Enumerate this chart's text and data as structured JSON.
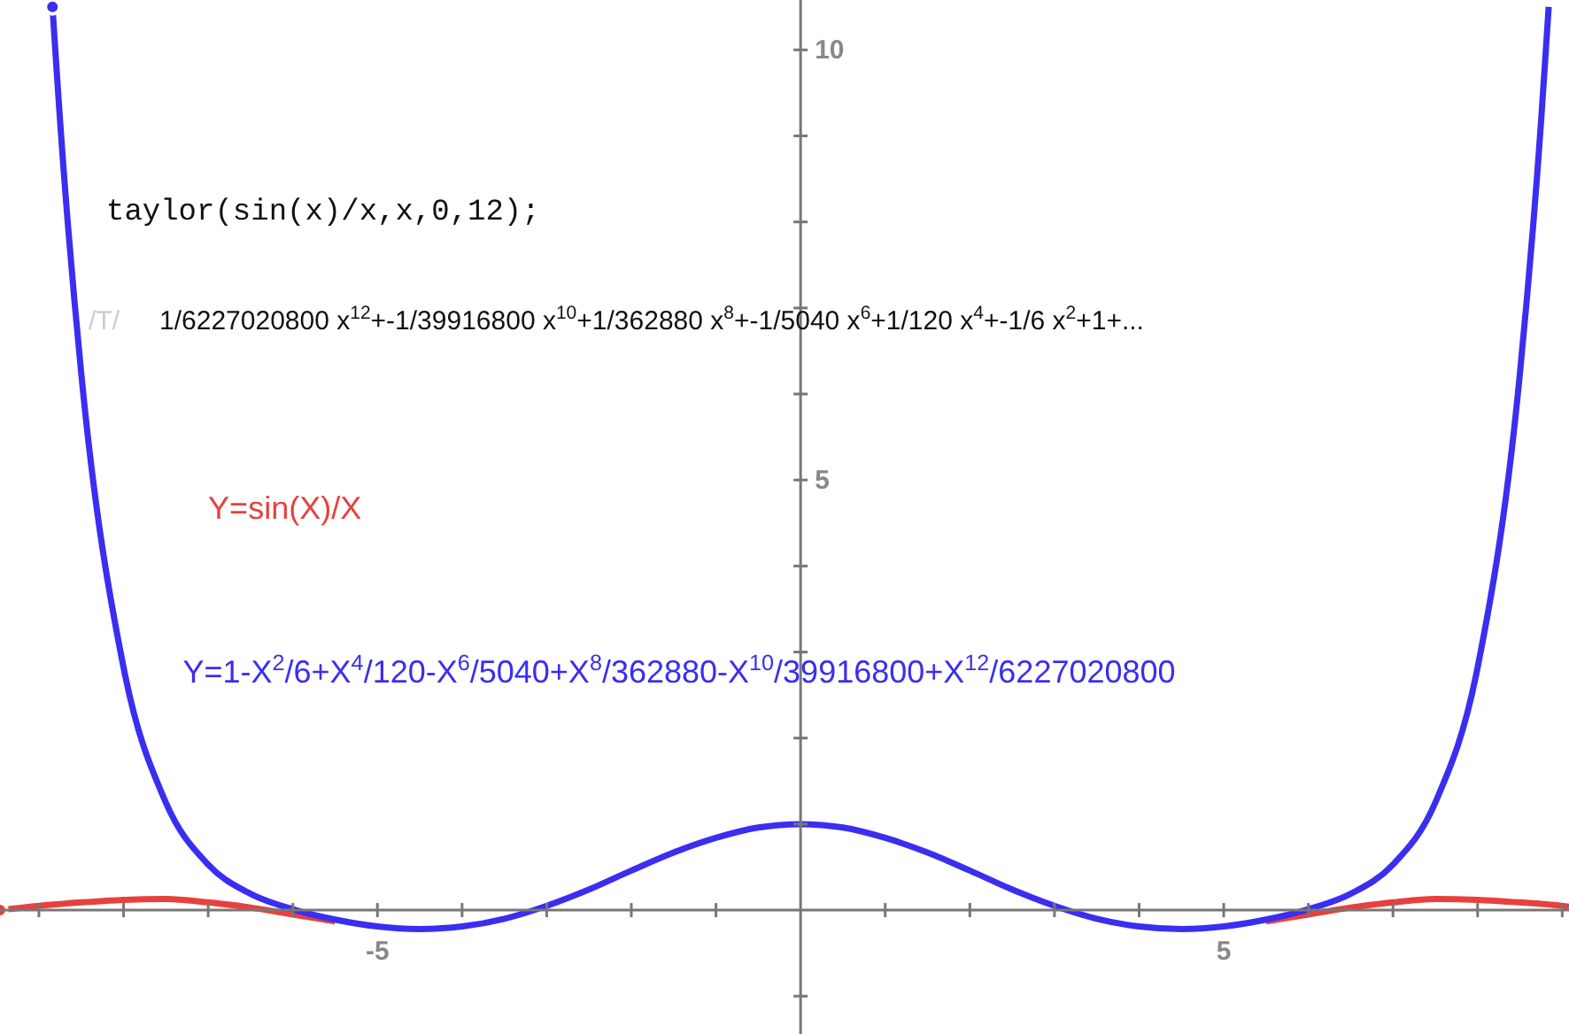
{
  "chart_data": {
    "type": "line",
    "title": "taylor(sin(x)/x,x,0,12);",
    "subtitle": "1/6227020800 x$^{12}$+-1/39916800 x$^{10}$+1/362880 x$^{8}$+-1/5040 x$^{6}$+1/120 x$^{4}$+-1/6 x$^{2}$+1+...",
    "annotations": [
      "/T/"
    ],
    "xlim": [
      -9.46,
      9.08
    ],
    "ylim": [
      -1.44,
      10.58
    ],
    "xticks": [
      {
        "value": -9,
        "label": null
      },
      {
        "value": -8,
        "label": null
      },
      {
        "value": -7,
        "label": null
      },
      {
        "value": -6,
        "label": null
      },
      -5,
      {
        "value": -4,
        "label": null
      },
      {
        "value": -3,
        "label": null
      },
      {
        "value": -2,
        "label": null
      },
      {
        "value": -1,
        "label": null
      },
      {
        "value": 1,
        "label": null
      },
      {
        "value": 2,
        "label": null
      },
      {
        "value": 3,
        "label": null
      },
      {
        "value": 4,
        "label": null
      },
      5,
      {
        "value": 6,
        "label": null
      },
      {
        "value": 7,
        "label": null
      },
      {
        "value": 8,
        "label": null
      },
      {
        "value": 9,
        "label": null
      }
    ],
    "yticks": [
      {
        "value": -1,
        "label": null
      },
      {
        "value": 1,
        "label": null
      },
      {
        "value": 2,
        "label": null
      },
      {
        "value": 3,
        "label": null
      },
      {
        "value": 4,
        "label": null
      },
      5,
      {
        "value": 6,
        "label": null
      },
      {
        "value": 7,
        "label": null
      },
      {
        "value": 8,
        "label": null
      },
      {
        "value": 9,
        "label": null
      },
      10
    ],
    "legend": false,
    "grid": false,
    "marker": "none",
    "line_style": "solid",
    "series": [
      {
        "name": "Y=sin(X)/X",
        "color": "#e8403f",
        "x": [
          -9.46,
          -9,
          -8.5,
          -8,
          -7.5,
          -7,
          -6.5,
          -6,
          -5.5,
          -5,
          -4.5,
          -4,
          -3.5,
          -3,
          -2.5,
          -2,
          -1.5,
          -1,
          -0.5,
          0,
          0.5,
          1,
          1.5,
          2,
          2.5,
          3,
          3.5,
          4,
          4.5,
          5,
          5.5,
          6,
          6.5,
          7,
          7.5,
          8,
          8.5,
          9,
          9.08
        ],
        "values": [
          0.0,
          0.05,
          0.09,
          0.12,
          0.13,
          0.09,
          0.03,
          -0.05,
          -0.13,
          null,
          null,
          null,
          null,
          null,
          null,
          null,
          null,
          null,
          null,
          null,
          null,
          null,
          null,
          null,
          null,
          null,
          null,
          null,
          null,
          null,
          -0.13,
          -0.05,
          0.03,
          0.09,
          0.13,
          0.12,
          0.09,
          0.05,
          0.04
        ]
      },
      {
        "name": "Y=1-X$^{2}$/6+X$^{4}$/120-X$^{6}$/5040+X$^{8}$/362880-X$^{10}$/39916800+X$^{12}$/6227020800",
        "color": "#3a2ef0",
        "x": [
          -8.84,
          -8.8,
          -8.75,
          -8.5,
          -8,
          -7.5,
          -7,
          -6.5,
          -6,
          -5.5,
          -5,
          -4.5,
          -4,
          -3.5,
          -3,
          -2.5,
          -2,
          -1.5,
          -1,
          -0.5,
          0,
          0.5,
          1,
          1.5,
          2,
          2.5,
          3,
          3.5,
          4,
          4.5,
          5,
          5.5,
          6,
          6.5,
          7,
          7.5,
          8,
          8.5,
          8.75,
          8.8,
          8.84
        ],
        "values": [
          10.5,
          9.9,
          9.17,
          6.24,
          2.82,
          1.25,
          0.53,
          0.19,
          0.01,
          -0.11,
          -0.19,
          -0.22,
          -0.19,
          -0.1,
          0.05,
          0.24,
          0.46,
          0.67,
          0.84,
          0.96,
          1,
          0.96,
          0.84,
          0.67,
          0.46,
          0.24,
          0.05,
          -0.1,
          -0.19,
          -0.22,
          -0.19,
          -0.11,
          0.01,
          0.19,
          0.53,
          1.25,
          2.82,
          6.24,
          9.17,
          9.9,
          10.5
        ]
      }
    ]
  }
}
